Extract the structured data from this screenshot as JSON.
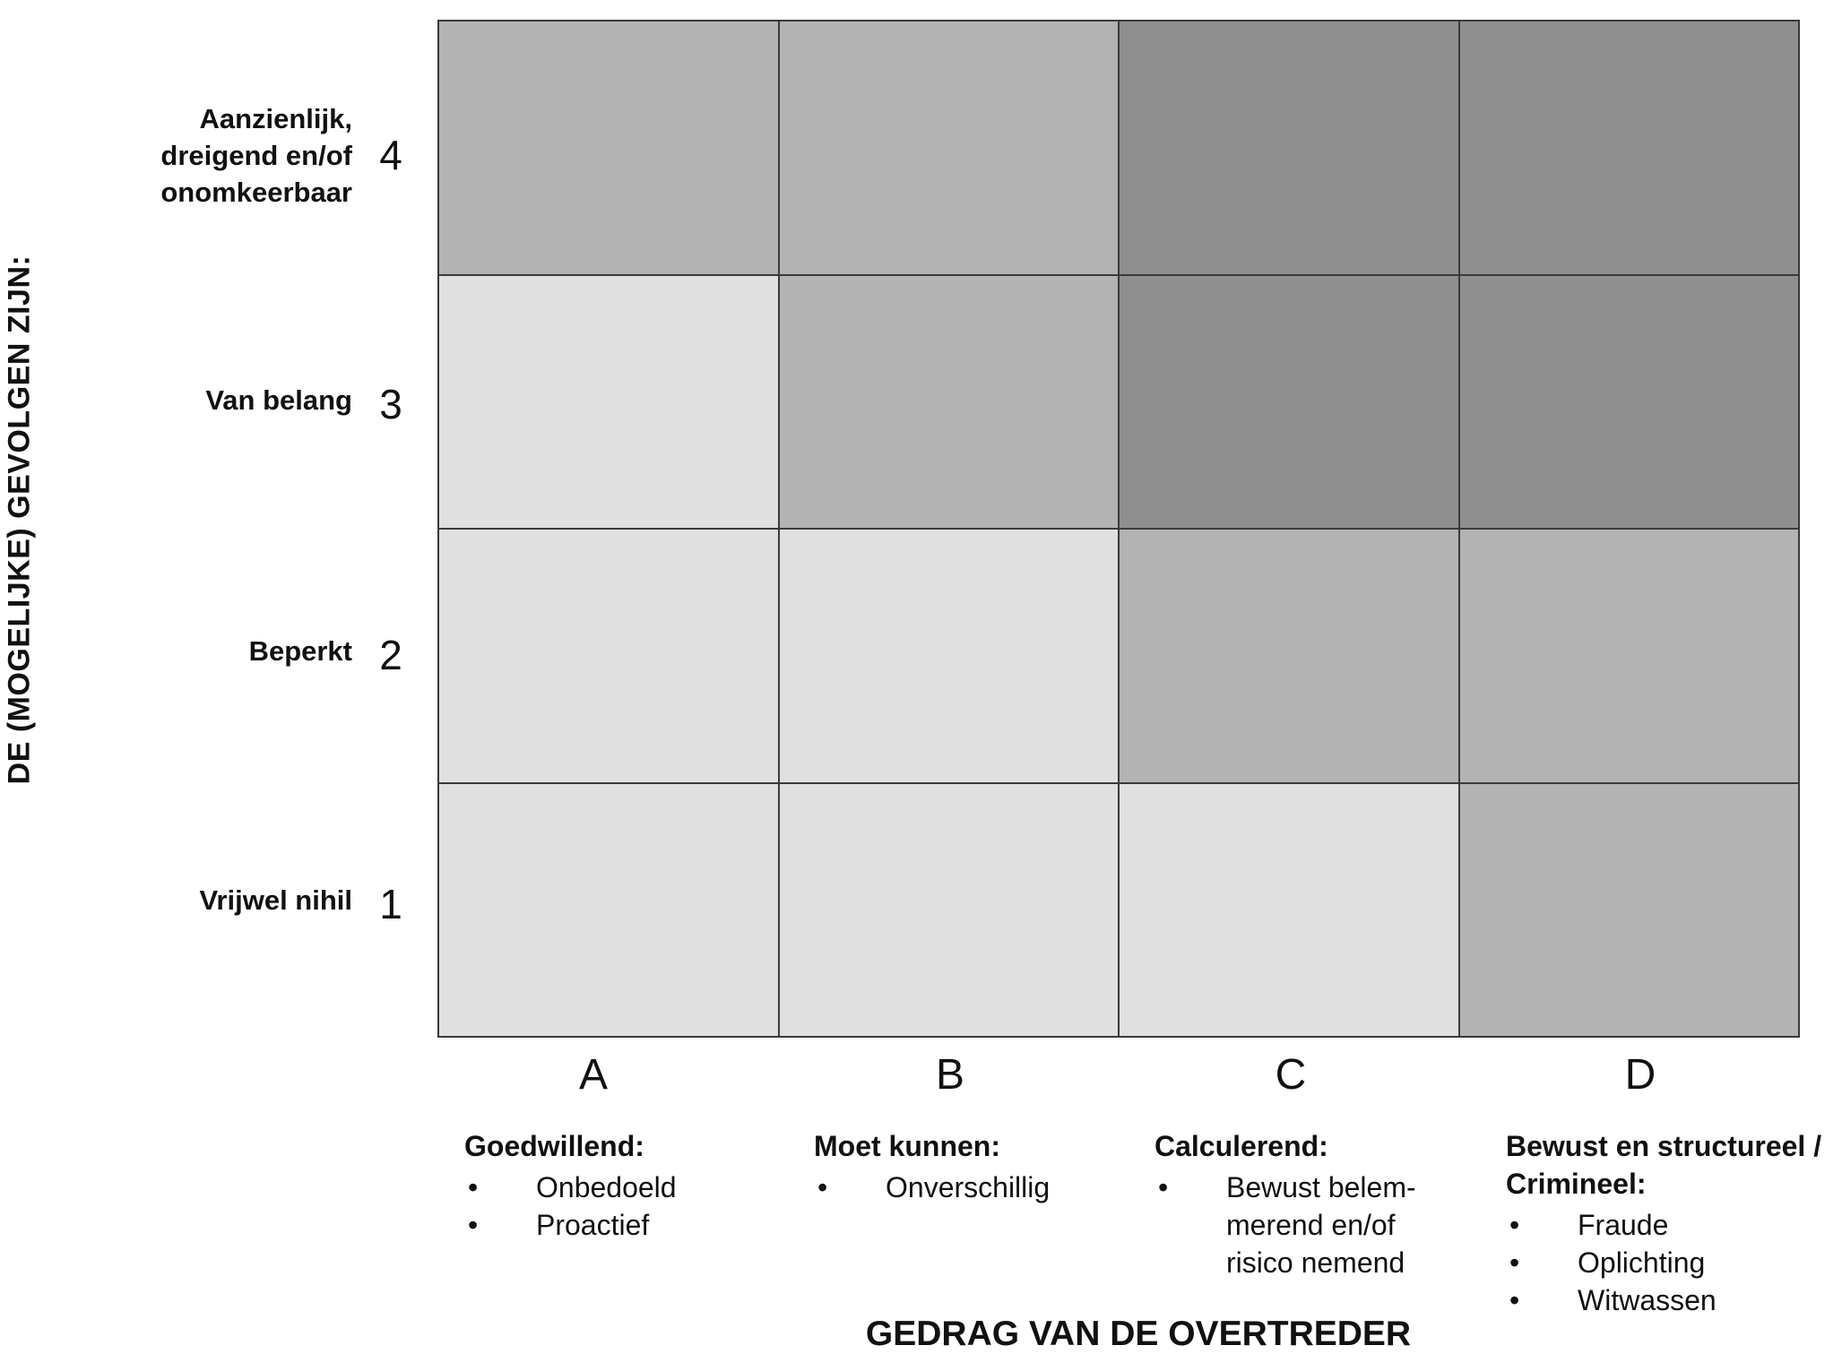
{
  "y_axis_title": "DE (MOGELIJKE) GEVOLGEN ZIJN:",
  "x_axis_title": "GEDRAG VAN DE OVERTREDER",
  "rows": [
    {
      "number": "4",
      "label": "Aanzienlijk, dreigend en/of onomkeerbaar"
    },
    {
      "number": "3",
      "label": "Van belang"
    },
    {
      "number": "2",
      "label": "Beperkt"
    },
    {
      "number": "1",
      "label": "Vrijwel nihil"
    }
  ],
  "columns": [
    {
      "letter": "A",
      "title": "Goedwillend:",
      "items": [
        "Onbedoeld",
        "Proactief"
      ]
    },
    {
      "letter": "B",
      "title": "Moet kunnen:",
      "items": [
        "Onverschillig"
      ]
    },
    {
      "letter": "C",
      "title": "Calculerend:",
      "items": [
        "Bewust belem-merend en/of risico nemend"
      ]
    },
    {
      "letter": "D",
      "title": "Bewust en structureel / Crimineel:",
      "items": [
        "Fraude",
        "Oplichting",
        "Witwassen"
      ]
    }
  ],
  "bullet_symbol": "•",
  "matrix_levels": [
    [
      2,
      2,
      3,
      3
    ],
    [
      1,
      2,
      3,
      3
    ],
    [
      1,
      1,
      2,
      2
    ],
    [
      1,
      1,
      1,
      2
    ]
  ],
  "colors": {
    "level_1": "#e0e0e0",
    "level_2": "#b3b3b3",
    "level_3": "#8f8f8f",
    "grid_line": "#3a3a3a"
  }
}
